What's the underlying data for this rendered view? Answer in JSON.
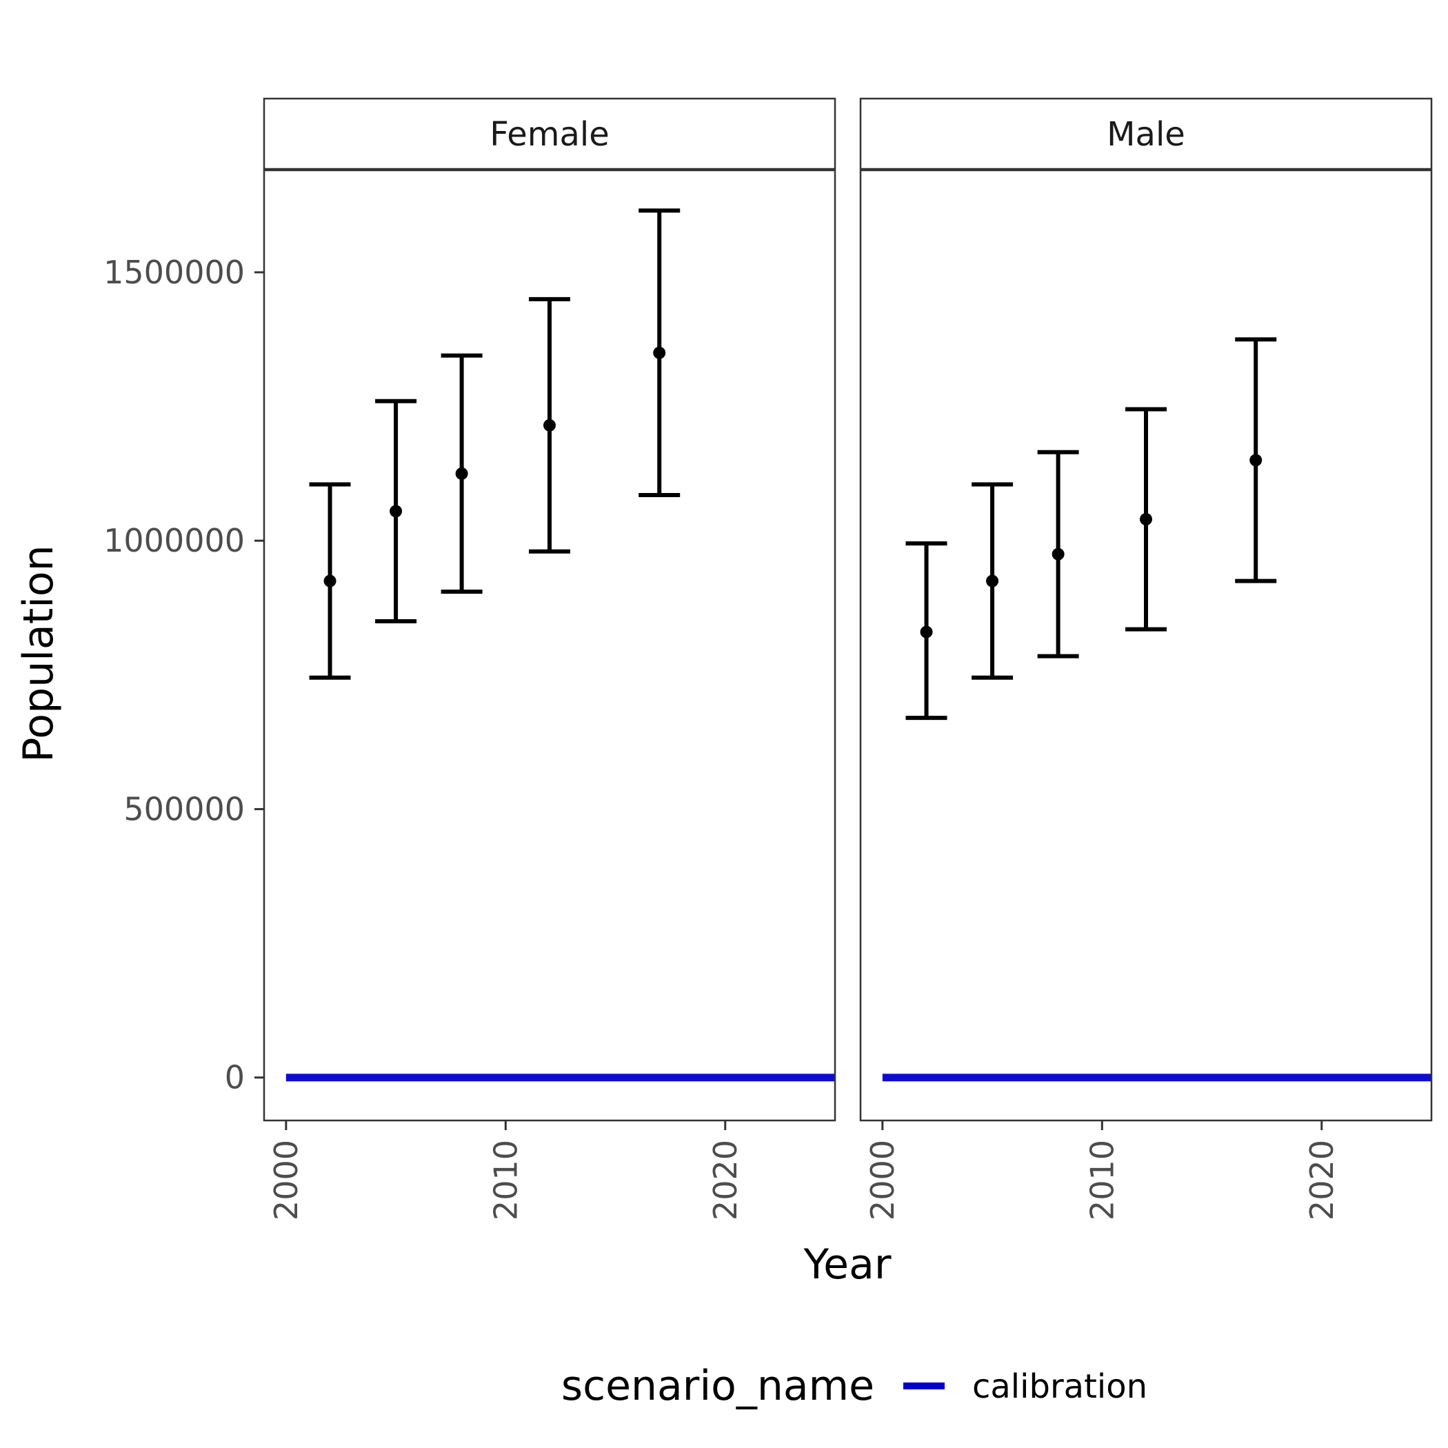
{
  "chart_data": {
    "type": "errorbar+line",
    "xlabel": "Year",
    "ylabel": "Population",
    "xlim": [
      1999,
      2025
    ],
    "ylim": [
      -80000,
      1690000
    ],
    "x_ticks": [
      2000,
      2010,
      2020
    ],
    "y_ticks": [
      0,
      500000,
      1000000,
      1500000
    ],
    "x_tick_labels": [
      "2000",
      "2010",
      "2020"
    ],
    "y_tick_labels": [
      "0",
      "500000",
      "1000000",
      "1500000"
    ],
    "grid": false,
    "legend": {
      "title": "scenario_name",
      "position": "bottom",
      "entries": [
        {
          "label": "calibration",
          "color": "#0000cd"
        }
      ]
    },
    "facets": [
      {
        "label": "Female",
        "points": [
          {
            "x": 2002,
            "y": 925000,
            "ymin": 745000,
            "ymax": 1105000
          },
          {
            "x": 2005,
            "y": 1055000,
            "ymin": 850000,
            "ymax": 1260000
          },
          {
            "x": 2008,
            "y": 1125000,
            "ymin": 905000,
            "ymax": 1345000
          },
          {
            "x": 2012,
            "y": 1215000,
            "ymin": 980000,
            "ymax": 1450000
          },
          {
            "x": 2017,
            "y": 1350000,
            "ymin": 1085000,
            "ymax": 1615000
          }
        ],
        "series": [
          {
            "name": "calibration",
            "x": [
              2000,
              2025
            ],
            "y": [
              0,
              0
            ]
          }
        ]
      },
      {
        "label": "Male",
        "points": [
          {
            "x": 2002,
            "y": 830000,
            "ymin": 670000,
            "ymax": 995000
          },
          {
            "x": 2005,
            "y": 925000,
            "ymin": 745000,
            "ymax": 1105000
          },
          {
            "x": 2008,
            "y": 975000,
            "ymin": 785000,
            "ymax": 1165000
          },
          {
            "x": 2012,
            "y": 1040000,
            "ymin": 835000,
            "ymax": 1245000
          },
          {
            "x": 2017,
            "y": 1150000,
            "ymin": 925000,
            "ymax": 1375000
          }
        ],
        "series": [
          {
            "name": "calibration",
            "x": [
              2000,
              2025
            ],
            "y": [
              0,
              0
            ]
          }
        ]
      }
    ],
    "colors": {
      "points": "#000000",
      "calibration": "#0000cd",
      "panel_border": "#333333"
    }
  }
}
